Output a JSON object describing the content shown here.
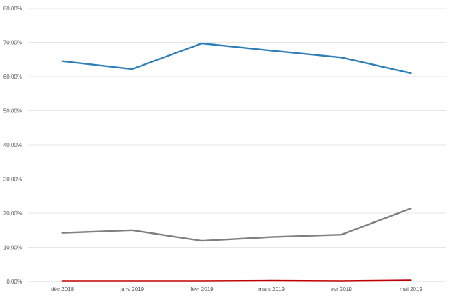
{
  "chart_data": {
    "type": "line",
    "title": "",
    "xlabel": "",
    "ylabel": "",
    "categories": [
      "déc 2018",
      "janv 2019",
      "févr 2019",
      "mars 2019",
      "avr 2019",
      "mai 2019"
    ],
    "ylim": [
      0,
      80
    ],
    "yticks": [
      0,
      10,
      20,
      30,
      40,
      50,
      60,
      70,
      80
    ],
    "ytick_labels": [
      "0,00%",
      "10,00%",
      "20,00%",
      "30,00%",
      "40,00%",
      "50,00%",
      "60,00%",
      "70,00%",
      "80,00%"
    ],
    "grid": true,
    "legend": "none",
    "series": [
      {
        "color": "#2e7fb8",
        "values": [
          64.5,
          62.2,
          69.7,
          67.6,
          65.6,
          61.0
        ]
      },
      {
        "color": "#7f7f7f",
        "values": [
          14.2,
          15.0,
          11.9,
          13.0,
          13.7,
          21.4
        ]
      },
      {
        "color": "#c00000",
        "values": [
          0.1,
          0.1,
          0.1,
          0.2,
          0.1,
          0.3
        ]
      }
    ]
  }
}
